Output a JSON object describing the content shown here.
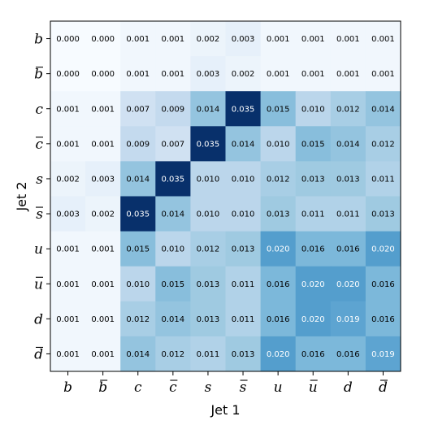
{
  "chart_data": {
    "type": "heatmap",
    "title": "",
    "xlabel": "Jet 1",
    "ylabel": "Jet 2",
    "x_categories": [
      "b",
      "b",
      "c",
      "c",
      "s",
      "s",
      "u",
      "u",
      "d",
      "d"
    ],
    "x_overline": [
      false,
      true,
      false,
      true,
      false,
      true,
      false,
      true,
      false,
      true
    ],
    "y_categories": [
      "b",
      "b",
      "c",
      "c",
      "s",
      "s",
      "u",
      "u",
      "d",
      "d"
    ],
    "y_overline": [
      false,
      true,
      false,
      true,
      false,
      true,
      false,
      true,
      false,
      true
    ],
    "colormap": "Blues",
    "vmin": 0.0,
    "vmax": 0.035,
    "grid": false,
    "legend": "none",
    "values": [
      [
        0.0,
        0.0,
        0.001,
        0.001,
        0.002,
        0.003,
        0.001,
        0.001,
        0.001,
        0.001
      ],
      [
        0.0,
        0.0,
        0.001,
        0.001,
        0.003,
        0.002,
        0.001,
        0.001,
        0.001,
        0.001
      ],
      [
        0.001,
        0.001,
        0.007,
        0.009,
        0.014,
        0.035,
        0.015,
        0.01,
        0.012,
        0.014
      ],
      [
        0.001,
        0.001,
        0.009,
        0.007,
        0.035,
        0.014,
        0.01,
        0.015,
        0.014,
        0.012
      ],
      [
        0.002,
        0.003,
        0.014,
        0.035,
        0.01,
        0.01,
        0.012,
        0.013,
        0.013,
        0.011
      ],
      [
        0.003,
        0.002,
        0.035,
        0.014,
        0.01,
        0.01,
        0.013,
        0.011,
        0.011,
        0.013
      ],
      [
        0.001,
        0.001,
        0.015,
        0.01,
        0.012,
        0.013,
        0.02,
        0.016,
        0.016,
        0.02
      ],
      [
        0.001,
        0.001,
        0.01,
        0.015,
        0.013,
        0.011,
        0.016,
        0.02,
        0.02,
        0.016
      ],
      [
        0.001,
        0.001,
        0.012,
        0.014,
        0.013,
        0.011,
        0.016,
        0.02,
        0.019,
        0.016
      ],
      [
        0.001,
        0.001,
        0.014,
        0.012,
        0.011,
        0.013,
        0.02,
        0.016,
        0.016,
        0.019
      ]
    ]
  }
}
